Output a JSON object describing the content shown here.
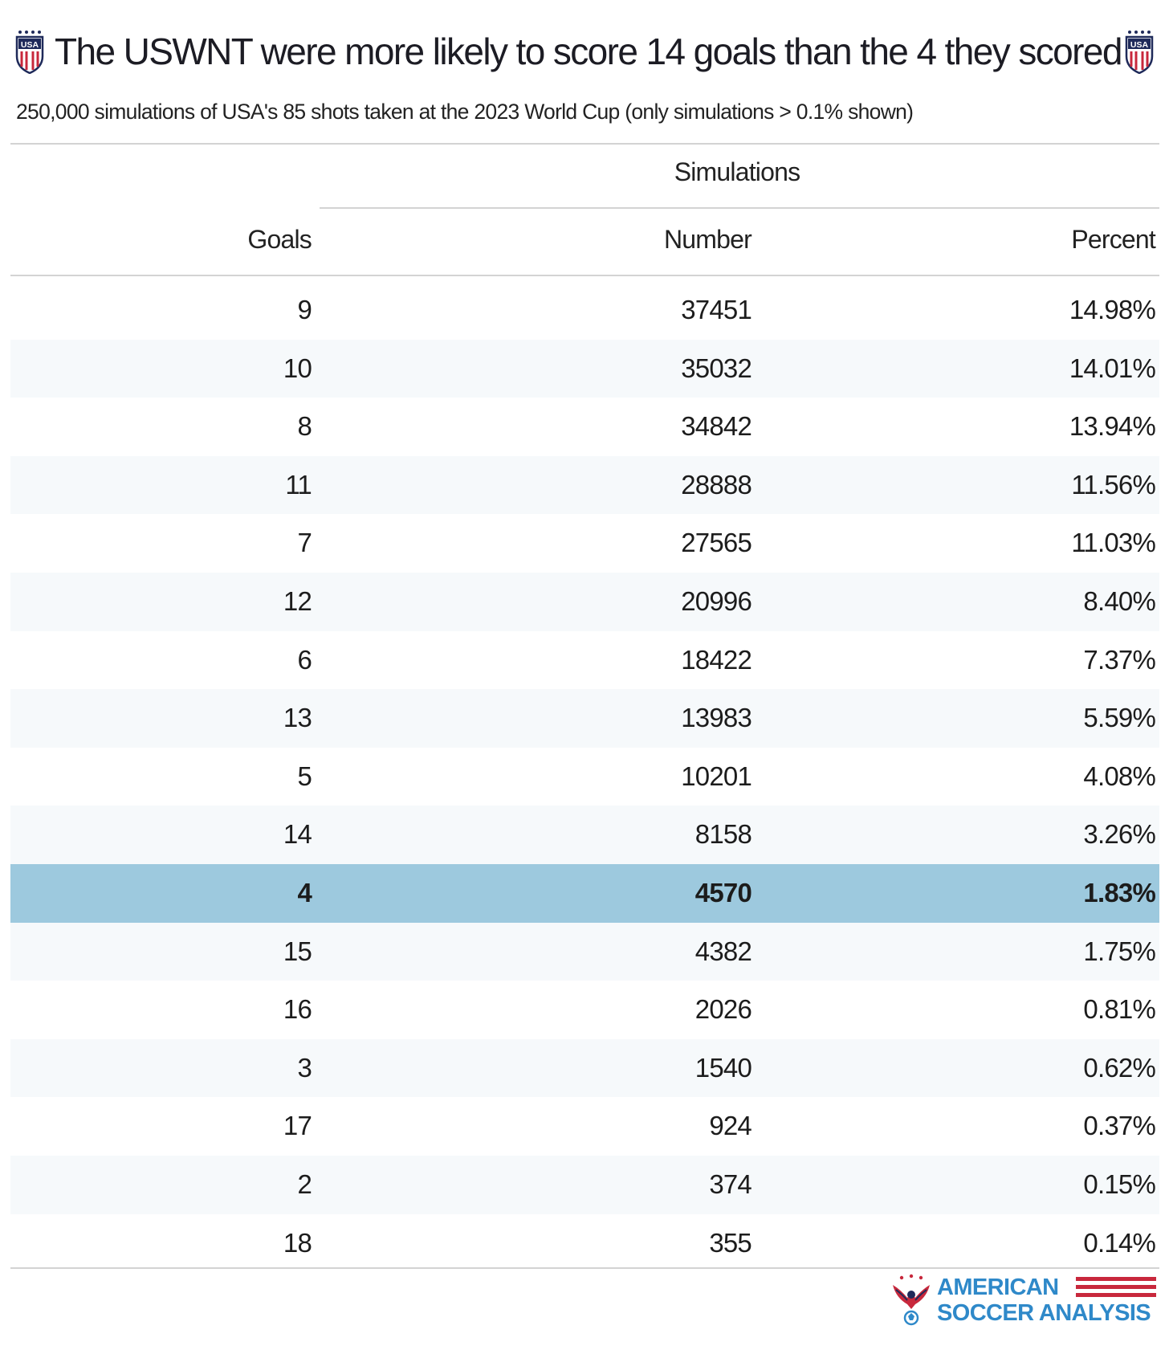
{
  "header": {
    "title": "The USWNT were more likely to score 14 goals than the 4 they scored",
    "subtitle": "250,000 simulations of USA's 85 shots taken at the 2023 World Cup (only simulations > 0.1% shown)",
    "crest_text": "USA"
  },
  "table": {
    "spanner_label": "Simulations",
    "columns": {
      "goals": "Goals",
      "number": "Number",
      "percent": "Percent"
    }
  },
  "chart_data": {
    "type": "table",
    "title": "The USWNT were more likely to score 14 goals than the 4 they scored",
    "subtitle": "250,000 simulations of USA's 85 shots taken at the 2023 World Cup (only simulations > 0.1% shown)",
    "spanner": "Simulations",
    "columns": [
      "Goals",
      "Number",
      "Percent"
    ],
    "highlight_goals": 4,
    "rows": [
      {
        "goals": "9",
        "number": "37451",
        "percent": "14.98%"
      },
      {
        "goals": "10",
        "number": "35032",
        "percent": "14.01%"
      },
      {
        "goals": "8",
        "number": "34842",
        "percent": "13.94%"
      },
      {
        "goals": "11",
        "number": "28888",
        "percent": "11.56%"
      },
      {
        "goals": "7",
        "number": "27565",
        "percent": "11.03%"
      },
      {
        "goals": "12",
        "number": "20996",
        "percent": "8.40%"
      },
      {
        "goals": "6",
        "number": "18422",
        "percent": "7.37%"
      },
      {
        "goals": "13",
        "number": "13983",
        "percent": "5.59%"
      },
      {
        "goals": "5",
        "number": "10201",
        "percent": "4.08%"
      },
      {
        "goals": "14",
        "number": "8158",
        "percent": "3.26%"
      },
      {
        "goals": "4",
        "number": "4570",
        "percent": "1.83%"
      },
      {
        "goals": "15",
        "number": "4382",
        "percent": "1.75%"
      },
      {
        "goals": "16",
        "number": "2026",
        "percent": "0.81%"
      },
      {
        "goals": "3",
        "number": "1540",
        "percent": "0.62%"
      },
      {
        "goals": "17",
        "number": "924",
        "percent": "0.37%"
      },
      {
        "goals": "2",
        "number": "374",
        "percent": "0.15%"
      },
      {
        "goals": "18",
        "number": "355",
        "percent": "0.14%"
      }
    ]
  },
  "colors": {
    "highlight_row": "#9dc9de",
    "alt_row": "#f6f9fb",
    "rule": "#d3d3d3",
    "logo_blue": "#2f89c9",
    "logo_red": "#c8283c"
  },
  "logo": {
    "line1": "AMERICAN",
    "line2": "SOCCER ANALYSIS"
  }
}
